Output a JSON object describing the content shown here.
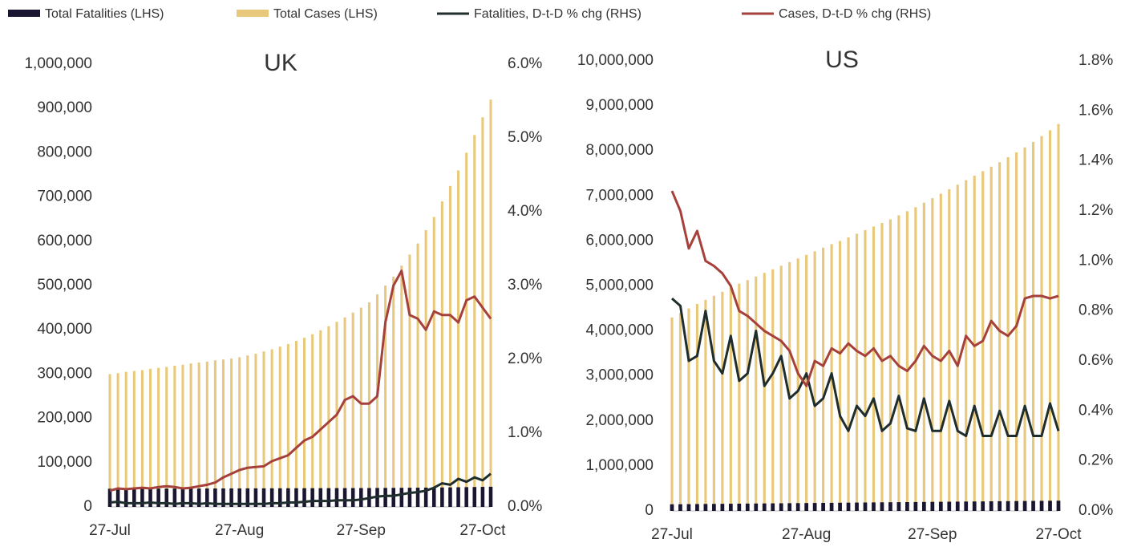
{
  "chart_data": [
    {
      "type": "bar-line",
      "title": "UK",
      "categories": [
        "27-Jul",
        null,
        null,
        null,
        null,
        null,
        null,
        null,
        null,
        null,
        null,
        null,
        null,
        null,
        null,
        null,
        "27-Aug",
        null,
        null,
        null,
        null,
        null,
        null,
        null,
        null,
        null,
        null,
        null,
        null,
        null,
        null,
        "27-Sep",
        null,
        null,
        null,
        null,
        null,
        null,
        null,
        null,
        null,
        null,
        null,
        null,
        null,
        null,
        "27-Oct",
        null
      ],
      "ylim": [
        0,
        1000000
      ],
      "yticks": [
        0,
        {
          "value": 100000,
          "label": "100,000"
        },
        {
          "value": 200000,
          "label": "200,000"
        },
        {
          "value": 300000,
          "label": "300,000"
        },
        {
          "value": 400000,
          "label": "400,000"
        },
        {
          "value": 500000,
          "label": "500,000"
        },
        {
          "value": 600000,
          "label": "600,000"
        },
        {
          "value": 700000,
          "label": "700,000"
        },
        {
          "value": 800000,
          "label": "800,000"
        },
        {
          "value": 900000,
          "label": "900,000"
        },
        {
          "value": 1000000,
          "label": "1,000,000"
        }
      ],
      "y2lim": [
        0,
        6
      ],
      "y2ticks": [
        {
          "value": 0,
          "label": "0.0%"
        },
        {
          "value": 1,
          "label": "1.0%"
        },
        {
          "value": 2,
          "label": "2.0%"
        },
        {
          "value": 3,
          "label": "3.0%"
        },
        {
          "value": 4,
          "label": "4.0%"
        },
        {
          "value": 5,
          "label": "5.0%"
        },
        {
          "value": 6,
          "label": "6.0%"
        }
      ],
      "series": [
        {
          "name": "Total Fatalities (LHS)",
          "type": "bar",
          "color": "#1a1530",
          "values": [
            41000,
            41050,
            41100,
            41150,
            41200,
            41250,
            41300,
            41350,
            41400,
            41450,
            41500,
            41550,
            41600,
            41650,
            41700,
            41750,
            41800,
            41850,
            41900,
            41950,
            42000,
            42050,
            42100,
            42150,
            42200,
            42250,
            42300,
            42350,
            42400,
            42450,
            42500,
            42550,
            42650,
            42750,
            42850,
            42950,
            43100,
            43250,
            43400,
            43550,
            43750,
            43950,
            44150,
            44400,
            44650,
            44900,
            45200,
            45500
          ]
        },
        {
          "name": "Total Cases (LHS)",
          "type": "bar",
          "color": "#e8c87a",
          "values": [
            300000,
            302000,
            305000,
            307000,
            309000,
            312000,
            314000,
            316000,
            319000,
            321000,
            324000,
            326000,
            328000,
            331000,
            333000,
            335000,
            338000,
            342000,
            346000,
            351000,
            356000,
            362000,
            368000,
            375000,
            382000,
            390000,
            399000,
            408000,
            418000,
            428000,
            439000,
            450000,
            462000,
            480000,
            500000,
            520000,
            545000,
            570000,
            595000,
            625000,
            655000,
            690000,
            725000,
            760000,
            800000,
            840000,
            880000,
            920000
          ]
        },
        {
          "name": "Fatalities, D-t-D % chg (RHS)",
          "type": "line",
          "axis": "y2",
          "color": "#1f2d2d",
          "values": [
            0.06,
            0.07,
            0.05,
            0.05,
            0.05,
            0.06,
            0.05,
            0.05,
            0.04,
            0.05,
            0.05,
            0.04,
            0.05,
            0.04,
            0.04,
            0.04,
            0.04,
            0.04,
            0.04,
            0.04,
            0.05,
            0.05,
            0.06,
            0.06,
            0.07,
            0.08,
            0.08,
            0.08,
            0.09,
            0.09,
            0.09,
            0.1,
            0.12,
            0.14,
            0.15,
            0.15,
            0.17,
            0.19,
            0.2,
            0.22,
            0.26,
            0.32,
            0.3,
            0.38,
            0.34,
            0.4,
            0.36,
            0.45
          ]
        },
        {
          "name": "Cases, D-t-D % chg (RHS)",
          "type": "line",
          "axis": "y2",
          "color": "#a5413a",
          "values": [
            0.22,
            0.25,
            0.24,
            0.25,
            0.26,
            0.25,
            0.27,
            0.28,
            0.27,
            0.25,
            0.26,
            0.28,
            0.3,
            0.33,
            0.4,
            0.45,
            0.5,
            0.53,
            0.54,
            0.55,
            0.62,
            0.66,
            0.7,
            0.8,
            0.9,
            0.95,
            1.05,
            1.15,
            1.25,
            1.45,
            1.5,
            1.4,
            1.4,
            1.5,
            2.5,
            3.0,
            3.2,
            2.6,
            2.55,
            2.4,
            2.65,
            2.6,
            2.6,
            2.5,
            2.8,
            2.85,
            2.7,
            2.55
          ]
        }
      ]
    },
    {
      "type": "bar-line",
      "title": "US",
      "categories": [
        "27-Jul",
        null,
        null,
        null,
        null,
        null,
        null,
        null,
        null,
        null,
        null,
        null,
        null,
        null,
        null,
        null,
        "27-Aug",
        null,
        null,
        null,
        null,
        null,
        null,
        null,
        null,
        null,
        null,
        null,
        null,
        null,
        null,
        "27-Sep",
        null,
        null,
        null,
        null,
        null,
        null,
        null,
        null,
        null,
        null,
        null,
        null,
        null,
        null,
        "27-Oct"
      ],
      "ylim": [
        0,
        10000000
      ],
      "yticks": [
        0,
        {
          "value": 1000000,
          "label": "1,000,000"
        },
        {
          "value": 2000000,
          "label": "2,000,000"
        },
        {
          "value": 3000000,
          "label": "3,000,000"
        },
        {
          "value": 4000000,
          "label": "4,000,000"
        },
        {
          "value": 5000000,
          "label": "5,000,000"
        },
        {
          "value": 6000000,
          "label": "6,000,000"
        },
        {
          "value": 7000000,
          "label": "7,000,000"
        },
        {
          "value": 8000000,
          "label": "8,000,000"
        },
        {
          "value": 9000000,
          "label": "9,000,000"
        },
        {
          "value": 10000000,
          "label": "10,000,000"
        }
      ],
      "y2lim": [
        0,
        1.8
      ],
      "y2ticks": [
        {
          "value": 0,
          "label": "0.0%"
        },
        {
          "value": 0.2,
          "label": "0.2%"
        },
        {
          "value": 0.4,
          "label": "0.4%"
        },
        {
          "value": 0.6,
          "label": "0.6%"
        },
        {
          "value": 0.8,
          "label": "0.8%"
        },
        {
          "value": 1.0,
          "label": "1.0%"
        },
        {
          "value": 1.2,
          "label": "1.2%"
        },
        {
          "value": 1.4,
          "label": "1.4%"
        },
        {
          "value": 1.6,
          "label": "1.6%"
        },
        {
          "value": 1.8,
          "label": "1.8%"
        }
      ],
      "series": [
        {
          "type": "bar",
          "color": "#1a1530",
          "values": [
            147000,
            148750,
            150500,
            152250,
            154000,
            155750,
            157500,
            159250,
            161000,
            162750,
            164500,
            166250,
            168000,
            169750,
            171500,
            173250,
            175000,
            176750,
            178500,
            180250,
            182000,
            183750,
            185500,
            187250,
            189000,
            190750,
            192500,
            194250,
            196000,
            197750,
            199500,
            201250,
            203000,
            204750,
            206500,
            208250,
            210000,
            211750,
            213500,
            215250,
            217000,
            218750,
            220500,
            222250,
            224000,
            225750,
            227500
          ]
        },
        {
          "type": "bar",
          "color": "#e8c87a",
          "values": [
            4300000,
            4400000,
            4500000,
            4600000,
            4690000,
            4780000,
            4870000,
            4960000,
            5050000,
            5130000,
            5210000,
            5290000,
            5370000,
            5450000,
            5530000,
            5610000,
            5690000,
            5770000,
            5850000,
            5930000,
            6000000,
            6080000,
            6160000,
            6240000,
            6320000,
            6400000,
            6480000,
            6570000,
            6660000,
            6750000,
            6850000,
            6950000,
            7050000,
            7150000,
            7250000,
            7350000,
            7450000,
            7550000,
            7650000,
            7750000,
            7860000,
            7970000,
            8080000,
            8200000,
            8330000,
            8460000,
            8600000
          ]
        },
        {
          "type": "line",
          "axis": "y2",
          "color": "#1f2d2d",
          "values": [
            0.85,
            0.82,
            0.6,
            0.62,
            0.8,
            0.6,
            0.55,
            0.7,
            0.52,
            0.55,
            0.72,
            0.5,
            0.55,
            0.62,
            0.45,
            0.48,
            0.55,
            0.42,
            0.45,
            0.55,
            0.38,
            0.32,
            0.42,
            0.38,
            0.45,
            0.32,
            0.35,
            0.46,
            0.33,
            0.32,
            0.45,
            0.32,
            0.32,
            0.44,
            0.32,
            0.3,
            0.42,
            0.3,
            0.3,
            0.4,
            0.3,
            0.3,
            0.42,
            0.3,
            0.3,
            0.43,
            0.32
          ]
        },
        {
          "type": "line",
          "axis": "y2",
          "color": "#a5413a",
          "values": [
            1.28,
            1.2,
            1.05,
            1.12,
            1.0,
            0.98,
            0.95,
            0.9,
            0.8,
            0.78,
            0.75,
            0.72,
            0.7,
            0.68,
            0.64,
            0.55,
            0.5,
            0.6,
            0.58,
            0.65,
            0.63,
            0.67,
            0.64,
            0.62,
            0.65,
            0.6,
            0.62,
            0.58,
            0.56,
            0.6,
            0.66,
            0.62,
            0.6,
            0.64,
            0.58,
            0.7,
            0.66,
            0.68,
            0.76,
            0.72,
            0.7,
            0.74,
            0.85,
            0.86,
            0.86,
            0.85,
            0.86
          ]
        }
      ]
    }
  ]
}
